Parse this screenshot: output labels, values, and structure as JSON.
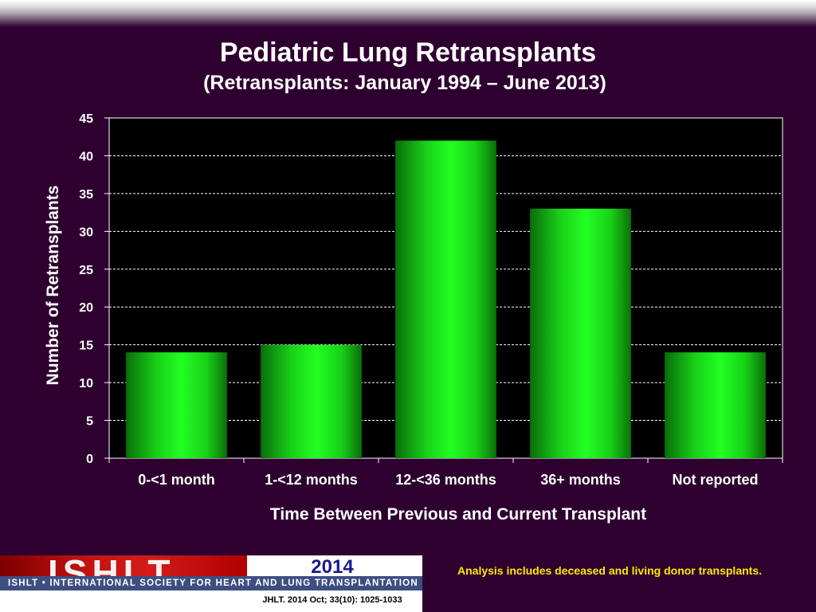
{
  "header": {
    "title": "Pediatric Lung Retransplants",
    "subtitle": "(Retransplants: January 1994 – June 2013)"
  },
  "chart_data": {
    "type": "bar",
    "categories": [
      "0-<1 month",
      "1-<12 months",
      "12-<36 months",
      "36+ months",
      "Not reported"
    ],
    "values": [
      14,
      15,
      42,
      33,
      14
    ],
    "xlabel": "Time Between Previous and Current Transplant",
    "ylabel": "Number of Retransplants",
    "ylim": [
      0,
      45
    ],
    "yticks": [
      0,
      5,
      10,
      15,
      20,
      25,
      30,
      35,
      40,
      45
    ],
    "grid": true,
    "bar_color": "#1cf01c",
    "plot_background": "#000000"
  },
  "footer": {
    "logo_text": "ISHLT",
    "logo_tagline": "ISHLT • INTERNATIONAL SOCIETY FOR HEART AND LUNG TRANSPLANTATION",
    "year": "2014",
    "citation": "JHLT. 2014 Oct; 33(10): 1025-1033",
    "note": "Analysis includes deceased and living donor transplants."
  },
  "colors": {
    "background": "#2e0030",
    "title_text": "#ffffff",
    "note_text": "#ffea00",
    "brand_red": "#c41212",
    "brand_blue": "#3d4f80"
  }
}
